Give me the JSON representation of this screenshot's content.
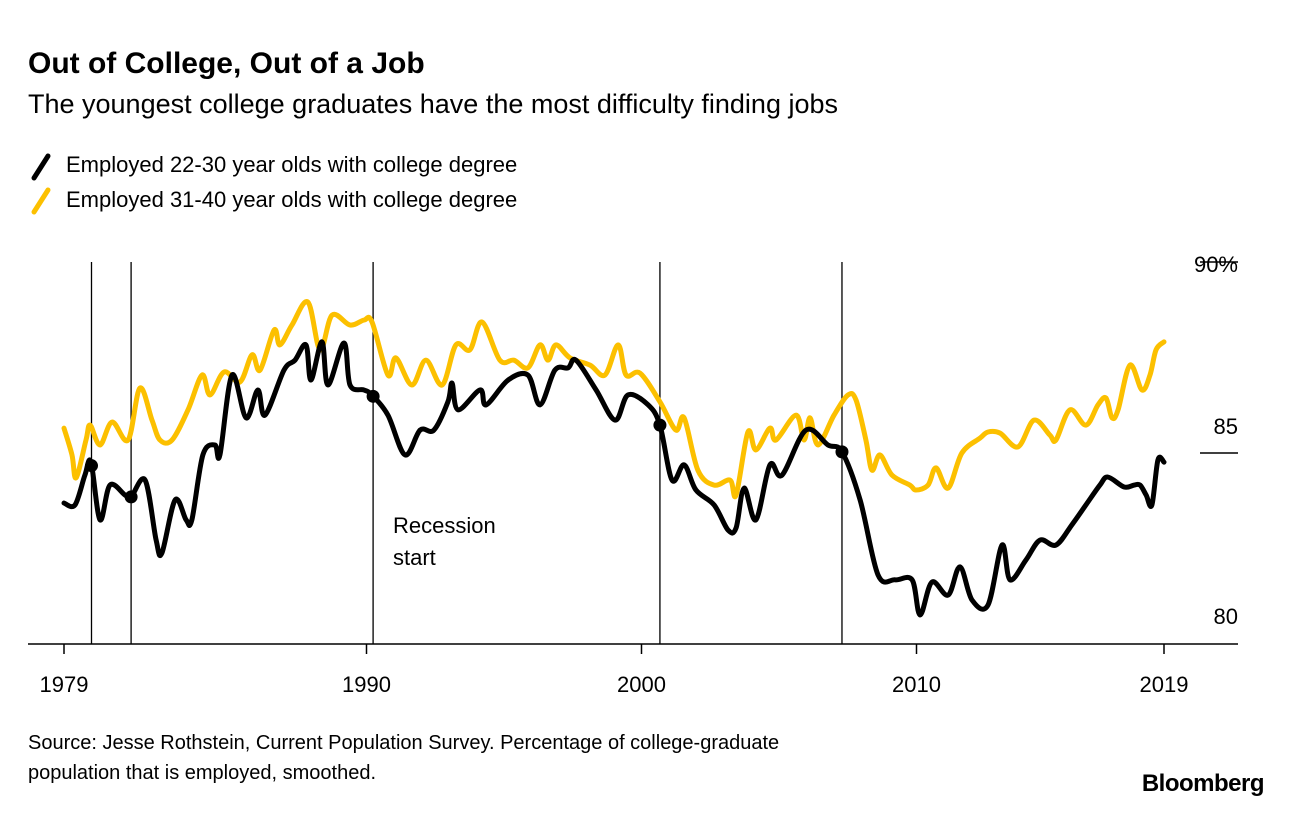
{
  "chart_data": {
    "type": "line",
    "title": "Out of College, Out of a Job",
    "subtitle": "The youngest college graduates have the most difficulty finding jobs",
    "xlabel": "",
    "ylabel": "",
    "xlim": [
      1979,
      2019
    ],
    "ylim": [
      80,
      90
    ],
    "x_ticks": [
      "1979",
      "1990",
      "2000",
      "2010",
      "2019"
    ],
    "x_tick_values": [
      1979,
      1990,
      2000,
      2010,
      2019
    ],
    "y_ticks": [
      {
        "value": 90,
        "label": "90%"
      },
      {
        "value": 85,
        "label": "85"
      },
      {
        "value": 80,
        "label": "80"
      }
    ],
    "grid": false,
    "legend_placement": "top-left",
    "annotation": {
      "line1": "Recession",
      "line2": "start"
    },
    "recessions": [
      1980.0,
      1981.44,
      1990.24,
      2000.67,
      2007.29
    ],
    "series": [
      {
        "name": "Employed 22-30 year olds with college degree",
        "color": "#000000",
        "x": [
          1979.0,
          1979.4,
          1979.76,
          1979.98,
          1980.31,
          1980.67,
          1981.22,
          1981.44,
          1981.95,
          1982.35,
          1982.56,
          1983.04,
          1983.44,
          1983.65,
          1984.05,
          1984.49,
          1984.67,
          1985.11,
          1985.62,
          1986.05,
          1986.31,
          1987.0,
          1987.4,
          1987.8,
          1987.98,
          1988.38,
          1988.6,
          1989.18,
          1989.4,
          1989.91,
          1990.2,
          1990.78,
          1991.4,
          1991.95,
          1992.45,
          1992.96,
          1993.11,
          1993.33,
          1994.13,
          1994.35,
          1995.15,
          1995.87,
          1996.31,
          1996.85,
          1997.33,
          1997.62,
          1998.35,
          1999.04,
          1999.51,
          2000.24,
          2000.67,
          2001.11,
          2001.55,
          2001.98,
          2002.64,
          2003.15,
          2003.44,
          2003.73,
          2004.16,
          2004.67,
          2005.11,
          2005.98,
          2006.78,
          2007.29,
          2007.95,
          2008.6,
          2009.22,
          2009.84,
          2010.13,
          2010.56,
          2011.15,
          2011.58,
          2012.02,
          2012.6,
          2013.11,
          2013.4,
          2013.98,
          2014.49,
          2015.07,
          2015.65,
          2016.16,
          2016.67,
          2016.96,
          2017.55,
          2017.91,
          2018.13,
          2018.35,
          2018.56,
          2018.78,
          2019.0
        ],
        "values": [
          83.69,
          83.64,
          84.42,
          84.76,
          83.25,
          84.16,
          83.9,
          83.85,
          84.29,
          82.72,
          82.38,
          83.77,
          83.25,
          83.25,
          84.95,
          85.21,
          84.95,
          87.04,
          85.92,
          86.65,
          85.99,
          87.17,
          87.43,
          87.83,
          86.91,
          87.91,
          86.78,
          87.88,
          86.78,
          86.65,
          86.52,
          85.99,
          84.95,
          85.6,
          85.6,
          86.34,
          86.83,
          86.13,
          86.65,
          86.26,
          86.91,
          87.04,
          86.26,
          87.17,
          87.23,
          87.43,
          86.65,
          85.86,
          86.52,
          86.26,
          85.73,
          84.29,
          84.69,
          84.03,
          83.64,
          82.98,
          83.04,
          84.08,
          83.25,
          84.69,
          84.42,
          85.6,
          85.21,
          85.03,
          83.77,
          81.81,
          81.68,
          81.68,
          80.76,
          81.62,
          81.28,
          82.02,
          81.15,
          81.02,
          82.59,
          81.68,
          82.2,
          82.72,
          82.59,
          83.12,
          83.64,
          84.16,
          84.37,
          84.11,
          84.16,
          84.16,
          83.9,
          83.64,
          84.82,
          84.76
        ]
      },
      {
        "name": "Employed 31-40 year olds with college degree",
        "color": "#FCC000",
        "x": [
          1979.0,
          1979.29,
          1979.44,
          1979.8,
          1979.95,
          1980.31,
          1980.75,
          1981.33,
          1981.76,
          1982.2,
          1982.49,
          1982.93,
          1983.51,
          1984.02,
          1984.31,
          1984.82,
          1985.4,
          1985.84,
          1986.13,
          1986.64,
          1986.85,
          1987.29,
          1987.87,
          1988.31,
          1988.75,
          1989.4,
          1989.91,
          1990.2,
          1990.78,
          1991.07,
          1991.65,
          1992.16,
          1992.75,
          1993.25,
          1993.76,
          1994.2,
          1994.85,
          1995.36,
          1995.87,
          1996.31,
          1996.6,
          1996.89,
          1997.4,
          1998.13,
          1998.67,
          1999.15,
          1999.44,
          1999.95,
          2000.67,
          2001.25,
          2001.55,
          2002.05,
          2002.64,
          2003.22,
          2003.44,
          2003.87,
          2004.16,
          2004.67,
          2004.89,
          2005.62,
          2005.91,
          2006.13,
          2006.42,
          2007.0,
          2007.51,
          2007.8,
          2008.16,
          2008.38,
          2008.67,
          2009.11,
          2009.76,
          2009.98,
          2010.42,
          2010.71,
          2011.15,
          2011.65,
          2012.31,
          2012.6,
          2013.04,
          2013.69,
          2014.27,
          2014.85,
          2015.07,
          2015.58,
          2016.16,
          2016.6,
          2016.89,
          2017.11,
          2017.33,
          2017.76,
          2018.2,
          2018.49,
          2018.71,
          2019.0
        ],
        "values": [
          85.65,
          84.95,
          84.35,
          85.34,
          85.73,
          85.21,
          85.81,
          85.34,
          86.7,
          85.86,
          85.34,
          85.34,
          86.13,
          87.04,
          86.52,
          87.12,
          86.86,
          87.57,
          87.17,
          88.22,
          87.83,
          88.35,
          88.95,
          87.7,
          88.61,
          88.35,
          88.48,
          88.43,
          87.04,
          87.49,
          86.78,
          87.43,
          86.78,
          87.83,
          87.7,
          88.43,
          87.43,
          87.43,
          87.23,
          87.83,
          87.43,
          87.83,
          87.49,
          87.3,
          87.04,
          87.83,
          87.04,
          87.09,
          86.34,
          85.6,
          85.92,
          84.55,
          84.16,
          84.29,
          83.9,
          85.55,
          85.08,
          85.65,
          85.34,
          85.99,
          85.34,
          85.92,
          85.21,
          85.99,
          86.52,
          86.39,
          85.34,
          84.55,
          84.95,
          84.42,
          84.16,
          84.03,
          84.16,
          84.61,
          84.08,
          85.0,
          85.39,
          85.55,
          85.52,
          85.16,
          85.86,
          85.47,
          85.34,
          86.13,
          85.73,
          86.26,
          86.44,
          85.92,
          86.13,
          87.3,
          86.65,
          87.04,
          87.7,
          87.91
        ]
      }
    ]
  },
  "footer": {
    "source_line1": "Source: Jesse Rothstein, Current Population Survey. Percentage of college-graduate",
    "source_line2": "population that is employed, smoothed.",
    "logo": "Bloomberg"
  }
}
